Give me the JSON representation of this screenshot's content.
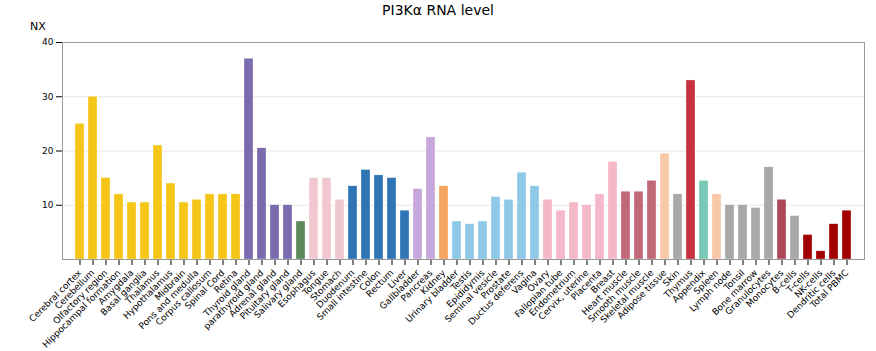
{
  "chart_data": {
    "type": "bar",
    "title": "PI3Kα RNA level",
    "ylabel": "NX",
    "categories": [
      "Cerebral cortex",
      "Cerebellum",
      "Olfactory region",
      "Hippocampal formation",
      "Amygdala",
      "Basal ganglia",
      "Thalamus",
      "Hypothalamus",
      "Midbrain",
      "Pons and medulla",
      "Corpus callosum",
      "Spinal Cord",
      "Retina",
      "Thyroid gland",
      "parathyroid gland",
      "Adrenal gland",
      "Pituitary gland",
      "Salivary gland",
      "Esophagus",
      "Tongue",
      "Stomach",
      "Duodenum",
      "Small intestine",
      "Colon",
      "Rectum",
      "Liver",
      "Gallbladder",
      "Pancreas",
      "Kidney",
      "Urinary bladder",
      "Testis",
      "Epididymis",
      "Seminal vesicle",
      "Prostate",
      "Ductus deferens",
      "Vagina",
      "Ovary",
      "Fallopian tube",
      "Endometrium",
      "Cervix, uterine",
      "Placenta",
      "Breast",
      "Heart muscle",
      "Smooth muscle",
      "Skeletal muscle",
      "Adipose tissue",
      "Skin",
      "Thymus",
      "Appendix",
      "Spleen",
      "Lymph node",
      "Tonsil",
      "Bone marrow",
      "Granulocytes",
      "Monocytes",
      "B-cells",
      "T-cells",
      "NK-cells",
      "Dendritic cells",
      "Total PBMC"
    ],
    "values": [
      25,
      30,
      15,
      12,
      10.5,
      10.5,
      21,
      14,
      10.5,
      11,
      12,
      12,
      12,
      37,
      20.5,
      10,
      10,
      7,
      15,
      15,
      11,
      13.5,
      16.5,
      15.5,
      15,
      9,
      13,
      22.5,
      13.5,
      7,
      6.5,
      7,
      11.5,
      11,
      16,
      13.5,
      11,
      9,
      10.5,
      10,
      12,
      18,
      12.5,
      12.5,
      14.5,
      19.5,
      12,
      33,
      14.5,
      12,
      10,
      10,
      9.5,
      17,
      11,
      8,
      4.5,
      1.5,
      6.5,
      9
    ],
    "colors": [
      "#F5C518",
      "#F5C518",
      "#F5C518",
      "#F5C518",
      "#F5C518",
      "#F5C518",
      "#F5C518",
      "#F5C518",
      "#F5C518",
      "#F5C518",
      "#F5C518",
      "#F5C518",
      "#F5C518",
      "#7B6BAE",
      "#7B6BAE",
      "#7B6BAE",
      "#7B6BAE",
      "#5C8A5C",
      "#F2C8D0",
      "#F2C8D0",
      "#F2C8D0",
      "#2E75B6",
      "#2E75B6",
      "#2E75B6",
      "#2E75B6",
      "#2E75B6",
      "#C8A8DC",
      "#C8A8DC",
      "#F4A460",
      "#90C8E8",
      "#90C8E8",
      "#90C8E8",
      "#90C8E8",
      "#90C8E8",
      "#90C8E8",
      "#90C8E8",
      "#F4B8C8",
      "#F4B8C8",
      "#F4B8C8",
      "#F4B8C8",
      "#F4B8C8",
      "#F4B8C8",
      "#C06878",
      "#C06878",
      "#C06878",
      "#F8C8A8",
      "#A8A8A8",
      "#C83040",
      "#78C8B8",
      "#F8C8A8",
      "#A8A8A8",
      "#A8A8A8",
      "#A8A8A8",
      "#A8A8A8",
      "#B0485C",
      "#A8A8A8",
      "#A00000",
      "#A00000",
      "#A00000",
      "#A00000"
    ],
    "ylim": [
      0,
      40
    ],
    "yticks": [
      10,
      20,
      30,
      40
    ],
    "grid": true
  }
}
